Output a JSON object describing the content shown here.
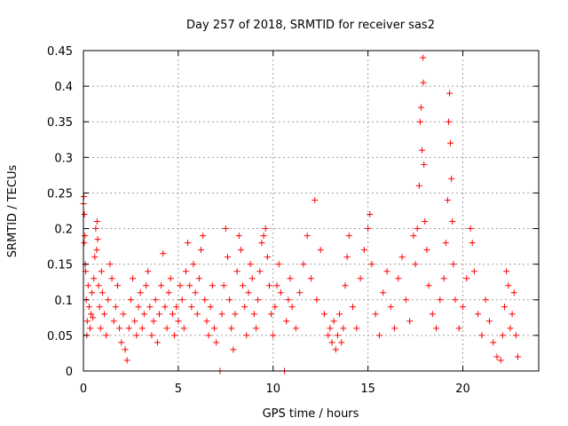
{
  "chart_data": {
    "type": "scatter",
    "title": "Day 257 of 2018, SRMTID for receiver sas2",
    "xlabel": "GPS time / hours",
    "ylabel": "SRMTID / TECUs",
    "xlim": [
      0,
      24
    ],
    "ylim": [
      0,
      0.45
    ],
    "x_ticks": [
      0,
      5,
      10,
      15,
      20
    ],
    "x_tick_labels": [
      "0",
      "5",
      "10",
      "15",
      "20"
    ],
    "y_ticks": [
      0,
      0.05,
      0.1,
      0.15,
      0.2,
      0.25,
      0.3,
      0.35,
      0.4,
      0.45
    ],
    "y_tick_labels": [
      "0",
      "0.05",
      "0.1",
      "0.15",
      "0.2",
      "0.25",
      "0.3",
      "0.35",
      "0.4",
      "0.45"
    ],
    "grid": true,
    "marker": "plus",
    "color": "#ff0000",
    "series": [
      {
        "name": "SRMTID",
        "points": [
          [
            0.0,
            0.235
          ],
          [
            0.02,
            0.245
          ],
          [
            0.04,
            0.18
          ],
          [
            0.05,
            0.22
          ],
          [
            0.08,
            0.19
          ],
          [
            0.1,
            0.15
          ],
          [
            0.12,
            0.14
          ],
          [
            0.15,
            0.1
          ],
          [
            0.18,
            0.05
          ],
          [
            0.2,
            0.07
          ],
          [
            0.25,
            0.12
          ],
          [
            0.3,
            0.09
          ],
          [
            0.35,
            0.06
          ],
          [
            0.4,
            0.08
          ],
          [
            0.45,
            0.11
          ],
          [
            0.5,
            0.075
          ],
          [
            0.55,
            0.13
          ],
          [
            0.6,
            0.16
          ],
          [
            0.65,
            0.2
          ],
          [
            0.7,
            0.17
          ],
          [
            0.72,
            0.21
          ],
          [
            0.75,
            0.185
          ],
          [
            0.8,
            0.12
          ],
          [
            0.85,
            0.09
          ],
          [
            0.9,
            0.06
          ],
          [
            0.95,
            0.14
          ],
          [
            1.0,
            0.11
          ],
          [
            1.1,
            0.08
          ],
          [
            1.2,
            0.05
          ],
          [
            1.3,
            0.1
          ],
          [
            1.4,
            0.15
          ],
          [
            1.5,
            0.13
          ],
          [
            1.6,
            0.07
          ],
          [
            1.7,
            0.09
          ],
          [
            1.8,
            0.12
          ],
          [
            1.9,
            0.06
          ],
          [
            2.0,
            0.04
          ],
          [
            2.1,
            0.08
          ],
          [
            2.2,
            0.03
          ],
          [
            2.3,
            0.015
          ],
          [
            2.4,
            0.06
          ],
          [
            2.5,
            0.1
          ],
          [
            2.6,
            0.13
          ],
          [
            2.7,
            0.07
          ],
          [
            2.8,
            0.05
          ],
          [
            2.9,
            0.09
          ],
          [
            3.0,
            0.11
          ],
          [
            3.1,
            0.06
          ],
          [
            3.2,
            0.08
          ],
          [
            3.3,
            0.12
          ],
          [
            3.4,
            0.14
          ],
          [
            3.5,
            0.09
          ],
          [
            3.6,
            0.05
          ],
          [
            3.7,
            0.07
          ],
          [
            3.8,
            0.1
          ],
          [
            3.9,
            0.04
          ],
          [
            4.0,
            0.08
          ],
          [
            4.1,
            0.12
          ],
          [
            4.2,
            0.165
          ],
          [
            4.3,
            0.09
          ],
          [
            4.4,
            0.06
          ],
          [
            4.5,
            0.11
          ],
          [
            4.6,
            0.13
          ],
          [
            4.7,
            0.08
          ],
          [
            4.8,
            0.05
          ],
          [
            4.9,
            0.09
          ],
          [
            5.0,
            0.07
          ],
          [
            5.1,
            0.12
          ],
          [
            5.2,
            0.1
          ],
          [
            5.3,
            0.06
          ],
          [
            5.4,
            0.14
          ],
          [
            5.5,
            0.18
          ],
          [
            5.6,
            0.12
          ],
          [
            5.7,
            0.09
          ],
          [
            5.8,
            0.15
          ],
          [
            5.9,
            0.11
          ],
          [
            6.0,
            0.08
          ],
          [
            6.1,
            0.13
          ],
          [
            6.2,
            0.17
          ],
          [
            6.3,
            0.19
          ],
          [
            6.4,
            0.1
          ],
          [
            6.5,
            0.07
          ],
          [
            6.6,
            0.05
          ],
          [
            6.7,
            0.09
          ],
          [
            6.8,
            0.12
          ],
          [
            6.9,
            0.06
          ],
          [
            7.0,
            0.04
          ],
          [
            7.2,
            0.0
          ],
          [
            7.3,
            0.08
          ],
          [
            7.4,
            0.12
          ],
          [
            7.5,
            0.2
          ],
          [
            7.6,
            0.16
          ],
          [
            7.7,
            0.1
          ],
          [
            7.8,
            0.06
          ],
          [
            7.9,
            0.03
          ],
          [
            8.0,
            0.08
          ],
          [
            8.1,
            0.14
          ],
          [
            8.2,
            0.19
          ],
          [
            8.3,
            0.17
          ],
          [
            8.4,
            0.12
          ],
          [
            8.5,
            0.09
          ],
          [
            8.6,
            0.05
          ],
          [
            8.7,
            0.11
          ],
          [
            8.8,
            0.15
          ],
          [
            8.9,
            0.13
          ],
          [
            9.0,
            0.08
          ],
          [
            9.1,
            0.06
          ],
          [
            9.2,
            0.1
          ],
          [
            9.3,
            0.14
          ],
          [
            9.4,
            0.18
          ],
          [
            9.5,
            0.19
          ],
          [
            9.6,
            0.2
          ],
          [
            9.7,
            0.16
          ],
          [
            9.8,
            0.12
          ],
          [
            9.9,
            0.08
          ],
          [
            10.0,
            0.05
          ],
          [
            10.1,
            0.09
          ],
          [
            10.2,
            0.12
          ],
          [
            10.3,
            0.15
          ],
          [
            10.4,
            0.11
          ],
          [
            10.6,
            0.0
          ],
          [
            10.7,
            0.07
          ],
          [
            10.8,
            0.1
          ],
          [
            10.9,
            0.13
          ],
          [
            11.0,
            0.09
          ],
          [
            11.2,
            0.06
          ],
          [
            11.4,
            0.11
          ],
          [
            11.6,
            0.15
          ],
          [
            11.8,
            0.19
          ],
          [
            12.0,
            0.13
          ],
          [
            12.2,
            0.24
          ],
          [
            12.3,
            0.1
          ],
          [
            12.5,
            0.17
          ],
          [
            12.7,
            0.08
          ],
          [
            12.9,
            0.05
          ],
          [
            13.0,
            0.06
          ],
          [
            13.1,
            0.04
          ],
          [
            13.2,
            0.07
          ],
          [
            13.3,
            0.03
          ],
          [
            13.4,
            0.05
          ],
          [
            13.5,
            0.08
          ],
          [
            13.6,
            0.04
          ],
          [
            13.7,
            0.06
          ],
          [
            13.8,
            0.12
          ],
          [
            13.9,
            0.16
          ],
          [
            14.0,
            0.19
          ],
          [
            14.2,
            0.09
          ],
          [
            14.4,
            0.06
          ],
          [
            14.6,
            0.13
          ],
          [
            14.8,
            0.17
          ],
          [
            15.0,
            0.2
          ],
          [
            15.1,
            0.22
          ],
          [
            15.2,
            0.15
          ],
          [
            15.4,
            0.08
          ],
          [
            15.6,
            0.05
          ],
          [
            15.8,
            0.11
          ],
          [
            16.0,
            0.14
          ],
          [
            16.2,
            0.09
          ],
          [
            16.4,
            0.06
          ],
          [
            16.6,
            0.13
          ],
          [
            16.8,
            0.16
          ],
          [
            17.0,
            0.1
          ],
          [
            17.2,
            0.07
          ],
          [
            17.4,
            0.19
          ],
          [
            17.5,
            0.15
          ],
          [
            17.6,
            0.2
          ],
          [
            17.7,
            0.26
          ],
          [
            17.75,
            0.35
          ],
          [
            17.8,
            0.37
          ],
          [
            17.85,
            0.31
          ],
          [
            17.9,
            0.44
          ],
          [
            17.92,
            0.405
          ],
          [
            17.95,
            0.29
          ],
          [
            18.0,
            0.21
          ],
          [
            18.1,
            0.17
          ],
          [
            18.2,
            0.12
          ],
          [
            18.4,
            0.08
          ],
          [
            18.6,
            0.06
          ],
          [
            18.8,
            0.1
          ],
          [
            19.0,
            0.13
          ],
          [
            19.1,
            0.18
          ],
          [
            19.2,
            0.24
          ],
          [
            19.25,
            0.35
          ],
          [
            19.3,
            0.39
          ],
          [
            19.35,
            0.32
          ],
          [
            19.4,
            0.27
          ],
          [
            19.45,
            0.21
          ],
          [
            19.5,
            0.15
          ],
          [
            19.6,
            0.1
          ],
          [
            19.8,
            0.06
          ],
          [
            20.0,
            0.09
          ],
          [
            20.2,
            0.13
          ],
          [
            20.4,
            0.2
          ],
          [
            20.5,
            0.18
          ],
          [
            20.6,
            0.14
          ],
          [
            20.8,
            0.08
          ],
          [
            21.0,
            0.05
          ],
          [
            21.2,
            0.1
          ],
          [
            21.4,
            0.07
          ],
          [
            21.6,
            0.04
          ],
          [
            21.8,
            0.02
          ],
          [
            22.0,
            0.015
          ],
          [
            22.1,
            0.05
          ],
          [
            22.2,
            0.09
          ],
          [
            22.3,
            0.14
          ],
          [
            22.4,
            0.12
          ],
          [
            22.5,
            0.06
          ],
          [
            22.6,
            0.08
          ],
          [
            22.7,
            0.11
          ],
          [
            22.8,
            0.05
          ],
          [
            22.9,
            0.02
          ]
        ]
      }
    ]
  }
}
